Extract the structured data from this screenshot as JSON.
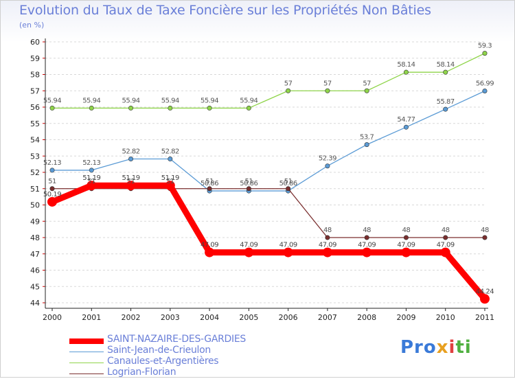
{
  "title": "Evolution du Taux de Taxe Foncière sur les Propriétés Non Bâties",
  "subtitle": "(en %)",
  "brand": {
    "p1": "Pro",
    "p2": "x",
    "p3": "i",
    "p4": "ti"
  },
  "chart_data": {
    "type": "line",
    "title": "Evolution du Taux de Taxe Foncière sur les Propriétés Non Bâties",
    "ylabel": "(en %)",
    "xlabel": "",
    "x": [
      "2000",
      "2001",
      "2002",
      "2003",
      "2004",
      "2005",
      "2006",
      "2007",
      "2008",
      "2009",
      "2010",
      "2011"
    ],
    "ylim": [
      44,
      60
    ],
    "yticks": [
      44,
      45,
      46,
      47,
      48,
      49,
      50,
      51,
      52,
      53,
      54,
      55,
      56,
      57,
      58,
      59,
      60
    ],
    "grid": "horizontal dashed",
    "legend_position": "bottom",
    "series": [
      {
        "name": "SAINT-NAZAIRE-DES-GARDIES",
        "color": "#ff0000",
        "values": [
          50.19,
          51.19,
          51.19,
          51.19,
          47.09,
          47.09,
          47.09,
          47.09,
          47.09,
          47.09,
          47.09,
          44.24
        ],
        "labels": [
          "50.19",
          "51.19",
          "51.19",
          "51.19",
          "47.09",
          "47.09",
          "47.09",
          "47.09",
          "47.09",
          "47.09",
          "47.09",
          "44.24"
        ]
      },
      {
        "name": "Saint-Jean-de-Crieulon",
        "color": "#5b9bd5",
        "values": [
          52.13,
          52.13,
          52.82,
          52.82,
          50.86,
          50.86,
          50.86,
          52.39,
          53.7,
          54.77,
          55.87,
          56.99
        ],
        "labels": [
          "52.13",
          "52.13",
          "52.82",
          "52.82",
          "50.86",
          "50.86",
          "50.86",
          "52.39",
          "53.7",
          "54.77",
          "55.87",
          "56.99"
        ]
      },
      {
        "name": "Canaules-et-Argentières",
        "color": "#8fd44a",
        "values": [
          55.94,
          55.94,
          55.94,
          55.94,
          55.94,
          55.94,
          57,
          57,
          57,
          58.14,
          58.14,
          59.3
        ],
        "labels": [
          "55.94",
          "55.94",
          "55.94",
          "55.94",
          "55.94",
          "55.94",
          "57",
          "57",
          "57",
          "58.14",
          "58.14",
          "59.3"
        ]
      },
      {
        "name": "Logrian-Florian",
        "color": "#7a2e2e",
        "values": [
          51,
          51,
          51,
          51,
          51,
          51,
          51,
          48,
          48,
          48,
          48,
          48
        ],
        "labels": [
          "51",
          "51",
          "51",
          "51",
          "51",
          "51",
          "51",
          "48",
          "48",
          "48",
          "48",
          "48"
        ]
      }
    ]
  }
}
